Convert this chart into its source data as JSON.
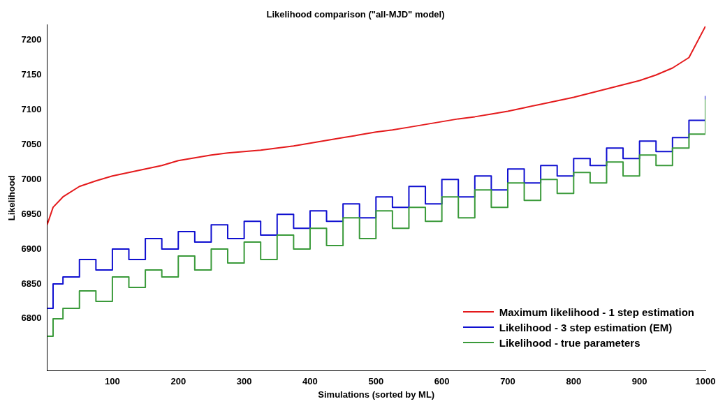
{
  "chart_data": {
    "type": "line",
    "title": "Likelihood comparison (\"all-MJD\" model)",
    "xlabel": "Simulations (sorted by ML)",
    "ylabel": "Likelihood",
    "x": [
      1,
      10,
      25,
      50,
      75,
      100,
      125,
      150,
      175,
      200,
      225,
      250,
      275,
      300,
      325,
      350,
      375,
      400,
      425,
      450,
      475,
      500,
      525,
      550,
      575,
      600,
      625,
      650,
      675,
      700,
      725,
      750,
      775,
      800,
      825,
      850,
      875,
      900,
      925,
      950,
      975,
      1000
    ],
    "series": [
      {
        "name": "Maximum likelihood - 1 step estimation",
        "color": "#e41a1c",
        "values": [
          6935,
          6960,
          6975,
          6990,
          6998,
          7005,
          7010,
          7015,
          7020,
          7027,
          7031,
          7035,
          7038,
          7040,
          7042,
          7045,
          7048,
          7052,
          7056,
          7060,
          7064,
          7068,
          7071,
          7075,
          7079,
          7083,
          7087,
          7090,
          7094,
          7098,
          7103,
          7108,
          7113,
          7118,
          7124,
          7130,
          7136,
          7142,
          7150,
          7160,
          7175,
          7220
        ]
      },
      {
        "name": "Likelihood - 3 step estimation (EM)",
        "color": "#1010d0",
        "type": "step",
        "values": [
          6815,
          6850,
          6860,
          6885,
          6870,
          6900,
          6885,
          6915,
          6900,
          6925,
          6910,
          6935,
          6915,
          6940,
          6920,
          6950,
          6930,
          6955,
          6940,
          6965,
          6945,
          6975,
          6960,
          6990,
          6965,
          7000,
          6975,
          7005,
          6985,
          7015,
          6995,
          7020,
          7005,
          7030,
          7020,
          7045,
          7030,
          7055,
          7040,
          7060,
          7085,
          7120
        ]
      },
      {
        "name": "Likelihood - true parameters",
        "color": "#3a9a3a",
        "type": "step",
        "values": [
          6775,
          6800,
          6815,
          6840,
          6825,
          6860,
          6845,
          6870,
          6860,
          6890,
          6870,
          6900,
          6880,
          6910,
          6885,
          6920,
          6900,
          6930,
          6905,
          6945,
          6915,
          6955,
          6930,
          6960,
          6940,
          6975,
          6945,
          6985,
          6960,
          6995,
          6970,
          7000,
          6980,
          7010,
          6995,
          7025,
          7005,
          7035,
          7020,
          7045,
          7065,
          7115
        ]
      }
    ],
    "xlim": [
      1,
      1000
    ],
    "xticks": [
      100,
      200,
      300,
      400,
      500,
      600,
      700,
      800,
      900,
      1000
    ],
    "ylim": [
      6725,
      7222
    ],
    "yticks": [
      6800,
      6850,
      6900,
      6950,
      7000,
      7050,
      7100,
      7150,
      7200
    ],
    "grid": false,
    "legend": "bottom right",
    "marker": "none",
    "line_style": "solid"
  }
}
